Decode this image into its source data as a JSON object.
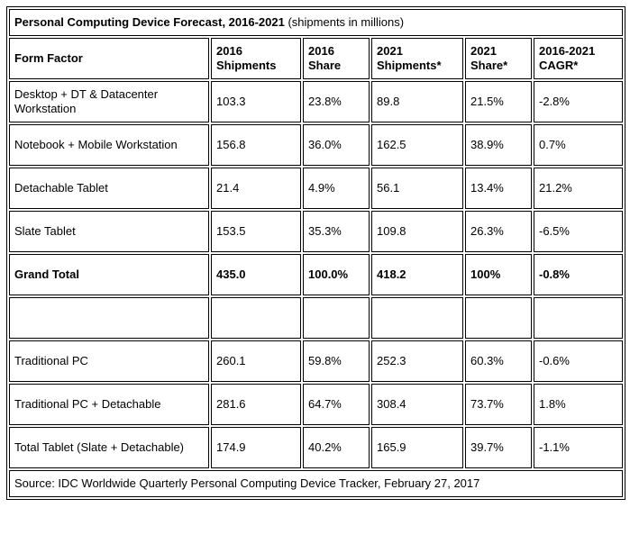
{
  "table": {
    "title_main": "Personal Computing Device Forecast, 2016-2021",
    "title_suffix": " (shipments in millions)",
    "columns": [
      "Form Factor",
      "2016 Shipments",
      "2016 Share",
      "2021 Shipments*",
      "2021 Share*",
      "2016-2021 CAGR*"
    ],
    "rows": [
      {
        "cells": [
          "Desktop + DT & Datacenter Workstation",
          "103.3",
          "23.8%",
          "89.8",
          "21.5%",
          "-2.8%"
        ]
      },
      {
        "cells": [
          "Notebook + Mobile Workstation",
          "156.8",
          "36.0%",
          "162.5",
          "38.9%",
          "0.7%"
        ]
      },
      {
        "cells": [
          "Detachable Tablet",
          "21.4",
          "4.9%",
          "56.1",
          "13.4%",
          "21.2%"
        ]
      },
      {
        "cells": [
          "Slate Tablet",
          "153.5",
          "35.3%",
          "109.8",
          "26.3%",
          "-6.5%"
        ]
      },
      {
        "cells": [
          "Grand Total",
          "435.0",
          "100.0%",
          "418.2",
          "100%",
          "-0.8%"
        ]
      },
      {
        "cells": [
          "",
          "",
          "",
          "",
          "",
          ""
        ]
      },
      {
        "cells": [
          "Traditional PC",
          "260.1",
          "59.8%",
          "252.3",
          "60.3%",
          "-0.6%"
        ]
      },
      {
        "cells": [
          "Traditional PC + Detachable",
          "281.6",
          "64.7%",
          "308.4",
          "73.7%",
          "1.8%"
        ]
      },
      {
        "cells": [
          "Total Tablet (Slate + Detachable)",
          "174.9",
          "40.2%",
          "165.9",
          "39.7%",
          "-1.1%"
        ]
      }
    ],
    "source": "Source: IDC Worldwide Quarterly Personal Computing Device Tracker, February 27, 2017"
  },
  "chart_data": {
    "type": "table",
    "title": "Personal Computing Device Forecast, 2016-2021 (shipments in millions)",
    "columns": [
      "Form Factor",
      "2016 Shipments",
      "2016 Share",
      "2021 Shipments*",
      "2021 Share*",
      "2016-2021 CAGR*"
    ],
    "rows": [
      [
        "Desktop + DT & Datacenter Workstation",
        103.3,
        "23.8%",
        89.8,
        "21.5%",
        "-2.8%"
      ],
      [
        "Notebook + Mobile Workstation",
        156.8,
        "36.0%",
        162.5,
        "38.9%",
        "0.7%"
      ],
      [
        "Detachable Tablet",
        21.4,
        "4.9%",
        56.1,
        "13.4%",
        "21.2%"
      ],
      [
        "Slate Tablet",
        153.5,
        "35.3%",
        109.8,
        "26.3%",
        "-6.5%"
      ],
      [
        "Grand Total",
        435.0,
        "100.0%",
        418.2,
        "100%",
        "-0.8%"
      ],
      [
        "Traditional PC",
        260.1,
        "59.8%",
        252.3,
        "60.3%",
        "-0.6%"
      ],
      [
        "Traditional PC + Detachable",
        281.6,
        "64.7%",
        308.4,
        "73.7%",
        "1.8%"
      ],
      [
        "Total Tablet (Slate + Detachable)",
        174.9,
        "40.2%",
        165.9,
        "39.7%",
        "-1.1%"
      ]
    ],
    "source": "Source: IDC Worldwide Quarterly Personal Computing Device Tracker, February 27, 2017"
  }
}
